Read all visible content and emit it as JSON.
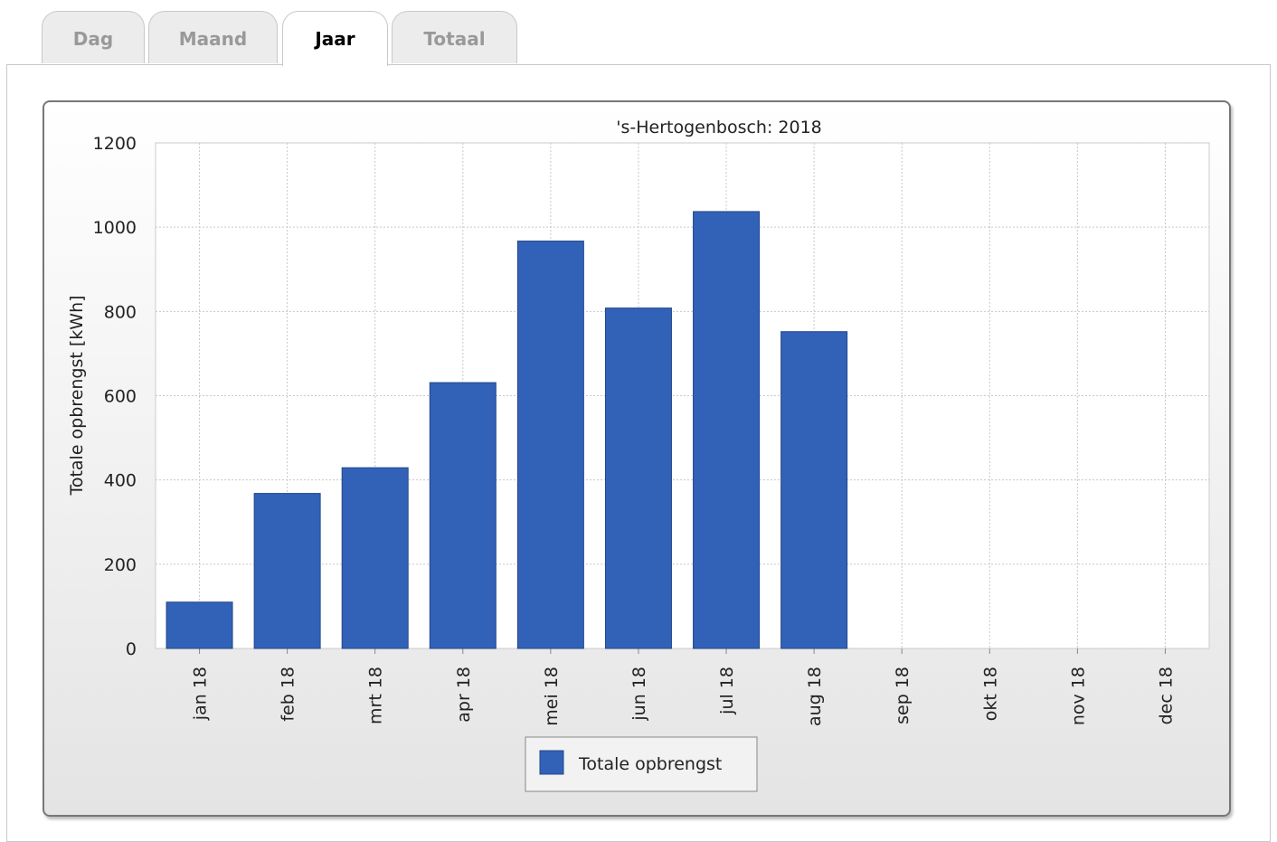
{
  "tabs": [
    {
      "label": "Dag"
    },
    {
      "label": "Maand"
    },
    {
      "label": "Jaar",
      "active": true
    },
    {
      "label": "Totaal"
    }
  ],
  "chart_data": {
    "type": "bar",
    "title": "'s-Hertogenbosch: 2018",
    "xlabel": "",
    "ylabel": "Totale opbrengst [kWh]",
    "ylim": [
      0,
      1200
    ],
    "yticks": [
      0,
      200,
      400,
      600,
      800,
      1000,
      1200
    ],
    "categories": [
      "jan 18",
      "feb 18",
      "mrt 18",
      "apr 18",
      "mei 18",
      "jun 18",
      "jul 18",
      "aug 18",
      "sep 18",
      "okt 18",
      "nov 18",
      "dec 18"
    ],
    "series": [
      {
        "name": "Totale opbrengst",
        "color": "#3162b8",
        "values": [
          110,
          368,
          429,
          631,
          967,
          808,
          1037,
          752,
          0,
          0,
          0,
          0
        ]
      }
    ],
    "legend": "bottom-center",
    "grid": true
  }
}
